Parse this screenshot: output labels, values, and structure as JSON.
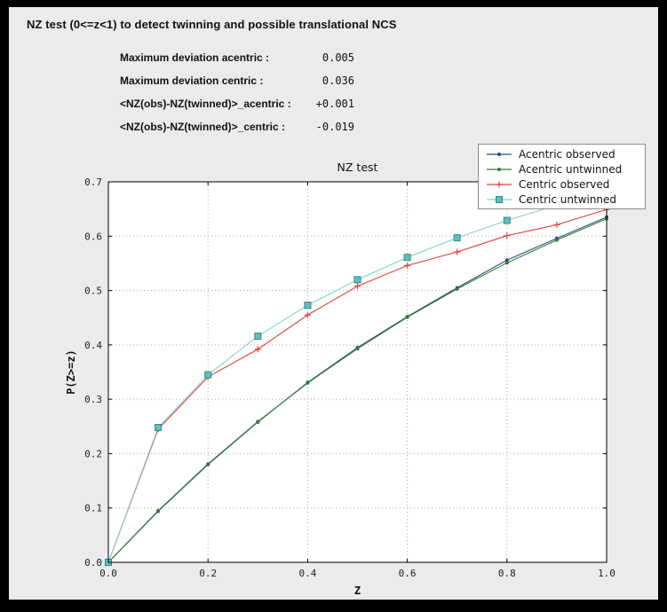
{
  "header": {
    "title": "NZ test (0<=z<1) to detect twinning and possible translational NCS"
  },
  "stats": [
    {
      "label": "Maximum deviation acentric :",
      "value": "0.005"
    },
    {
      "label": "Maximum deviation centric :",
      "value": "0.036"
    },
    {
      "label": "<NZ(obs)-NZ(twinned)>_acentric :",
      "value": "+0.001"
    },
    {
      "label": "<NZ(obs)-NZ(twinned)>_centric :",
      "value": "-0.019"
    }
  ],
  "chart_data": {
    "type": "line",
    "title": "NZ test",
    "xlabel": "Z",
    "ylabel": "P(Z>=z)",
    "xlim": [
      0.0,
      1.0
    ],
    "ylim": [
      0.0,
      0.7
    ],
    "xticks": [
      0.0,
      0.2,
      0.4,
      0.6,
      0.8,
      1.0
    ],
    "yticks": [
      0.0,
      0.1,
      0.2,
      0.3,
      0.4,
      0.5,
      0.6,
      0.7
    ],
    "grid": true,
    "legend_position": "upper right",
    "x": [
      0.0,
      0.1,
      0.2,
      0.3,
      0.4,
      0.5,
      0.6,
      0.7,
      0.8,
      0.9,
      1.0
    ],
    "series": [
      {
        "name": "Acentric observed",
        "color": "#2b4b8b",
        "marker": "dot",
        "values": [
          0.0,
          0.094,
          0.18,
          0.258,
          0.331,
          0.395,
          0.452,
          0.505,
          0.556,
          0.596,
          0.635
        ]
      },
      {
        "name": "Acentric untwinned",
        "color": "#377b37",
        "marker": "dot",
        "values": [
          0.0,
          0.095,
          0.181,
          0.259,
          0.33,
          0.393,
          0.451,
          0.503,
          0.551,
          0.593,
          0.632
        ]
      },
      {
        "name": "Centric observed",
        "color": "#e0433b",
        "marker": "plus",
        "values": [
          0.0,
          0.245,
          0.341,
          0.392,
          0.455,
          0.508,
          0.546,
          0.571,
          0.601,
          0.621,
          0.649
        ]
      },
      {
        "name": "Centric untwinned",
        "color": "#85d2d2",
        "marker": "square",
        "marker_fill": "#66bdbd",
        "marker_edge": "#2e8b8b",
        "values": [
          0.0,
          0.248,
          0.345,
          0.416,
          0.473,
          0.52,
          0.561,
          0.597,
          0.629,
          0.657,
          0.683
        ]
      }
    ],
    "colors": {
      "plot_bg": "#ffffff",
      "panel_bg": "#ebebeb",
      "grid": "#a8a8a8",
      "frame": "#000000"
    }
  }
}
